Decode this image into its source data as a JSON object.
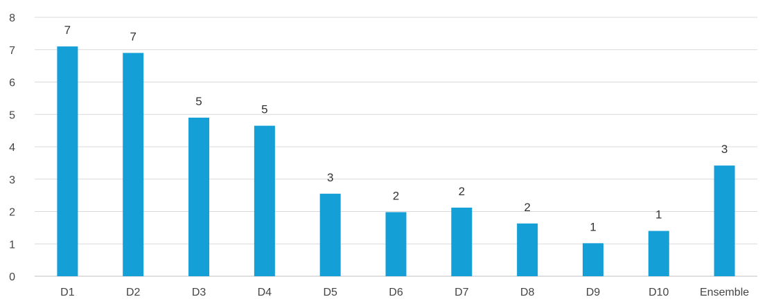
{
  "chart_data": {
    "type": "bar",
    "categories": [
      "D1",
      "D2",
      "D3",
      "D4",
      "D5",
      "D6",
      "D7",
      "D8",
      "D9",
      "D10",
      "Ensemble"
    ],
    "values": [
      7.1,
      6.9,
      4.9,
      4.65,
      2.55,
      1.98,
      2.12,
      1.63,
      1.02,
      1.4,
      3.42
    ],
    "data_labels": [
      "7",
      "7",
      "5",
      "5",
      "3",
      "2",
      "2",
      "2",
      "1",
      "1",
      "3"
    ],
    "yticks": [
      "0",
      "1",
      "2",
      "3",
      "4",
      "5",
      "6",
      "7",
      "8"
    ],
    "ylim": [
      0,
      8
    ],
    "grid": true,
    "legend": "none",
    "title": "",
    "xlabel": "",
    "ylabel": ""
  },
  "colors": {
    "bar": "#159fd7"
  }
}
